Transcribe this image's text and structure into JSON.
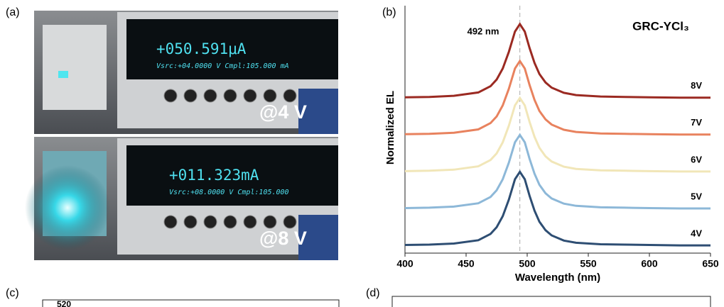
{
  "panel_labels": [
    "(a)",
    "(b)",
    "(c)",
    "(d)"
  ],
  "photos": [
    {
      "reading": "+050.591μA",
      "status": "Vsrc:+04.0000 V  Cmpl:105.000 mA",
      "caption": "@4 V"
    },
    {
      "reading": "+011.323mA",
      "status": "Vsrc:+08.0000 V  Cmpl:105.000",
      "caption": "@8 V"
    }
  ],
  "chart_data": {
    "type": "line",
    "title": "GRC-YCl₃",
    "annotation": "492 nm",
    "marker_line_x": 494,
    "xlabel": "Wavelength (nm)",
    "ylabel": "Normalized EL",
    "x": [
      400,
      420,
      440,
      460,
      470,
      475,
      480,
      485,
      490,
      494,
      498,
      502,
      506,
      510,
      515,
      520,
      530,
      540,
      560,
      580,
      600,
      625,
      650
    ],
    "xlim": [
      400,
      650
    ],
    "xticks": [
      400,
      450,
      500,
      550,
      600,
      650
    ],
    "ylim": [
      -0.2,
      6.5
    ],
    "series": [
      {
        "name": "4V",
        "color": "#2e4e73",
        "values": [
          0.02,
          0.03,
          0.06,
          0.15,
          0.32,
          0.5,
          0.8,
          1.25,
          1.8,
          2.0,
          1.8,
          1.35,
          0.95,
          0.65,
          0.42,
          0.28,
          0.14,
          0.08,
          0.04,
          0.03,
          0.02,
          0.01,
          0.01
        ]
      },
      {
        "name": "5V",
        "color": "#8db8d8",
        "values": [
          1.02,
          1.03,
          1.06,
          1.15,
          1.32,
          1.5,
          1.8,
          2.25,
          2.8,
          3.0,
          2.8,
          2.35,
          1.95,
          1.65,
          1.42,
          1.28,
          1.14,
          1.08,
          1.04,
          1.03,
          1.02,
          1.01,
          1.01
        ]
      },
      {
        "name": "6V",
        "color": "#f1e6b8",
        "values": [
          2.02,
          2.03,
          2.06,
          2.15,
          2.32,
          2.5,
          2.8,
          3.25,
          3.8,
          4.0,
          3.8,
          3.35,
          2.95,
          2.65,
          2.42,
          2.28,
          2.14,
          2.08,
          2.04,
          2.03,
          2.02,
          2.01,
          2.01
        ]
      },
      {
        "name": "7V",
        "color": "#e8825e",
        "values": [
          3.02,
          3.03,
          3.06,
          3.15,
          3.32,
          3.5,
          3.8,
          4.25,
          4.8,
          5.0,
          4.8,
          4.35,
          3.95,
          3.65,
          3.42,
          3.28,
          3.14,
          3.08,
          3.04,
          3.03,
          3.02,
          3.01,
          3.01
        ]
      },
      {
        "name": "8V",
        "color": "#9b2a22",
        "values": [
          4.02,
          4.03,
          4.06,
          4.15,
          4.32,
          4.5,
          4.8,
          5.25,
          5.8,
          6.0,
          5.8,
          5.35,
          4.95,
          4.65,
          4.42,
          4.28,
          4.14,
          4.08,
          4.04,
          4.03,
          4.02,
          4.01,
          4.01
        ]
      }
    ]
  },
  "panel_c_text": "520"
}
